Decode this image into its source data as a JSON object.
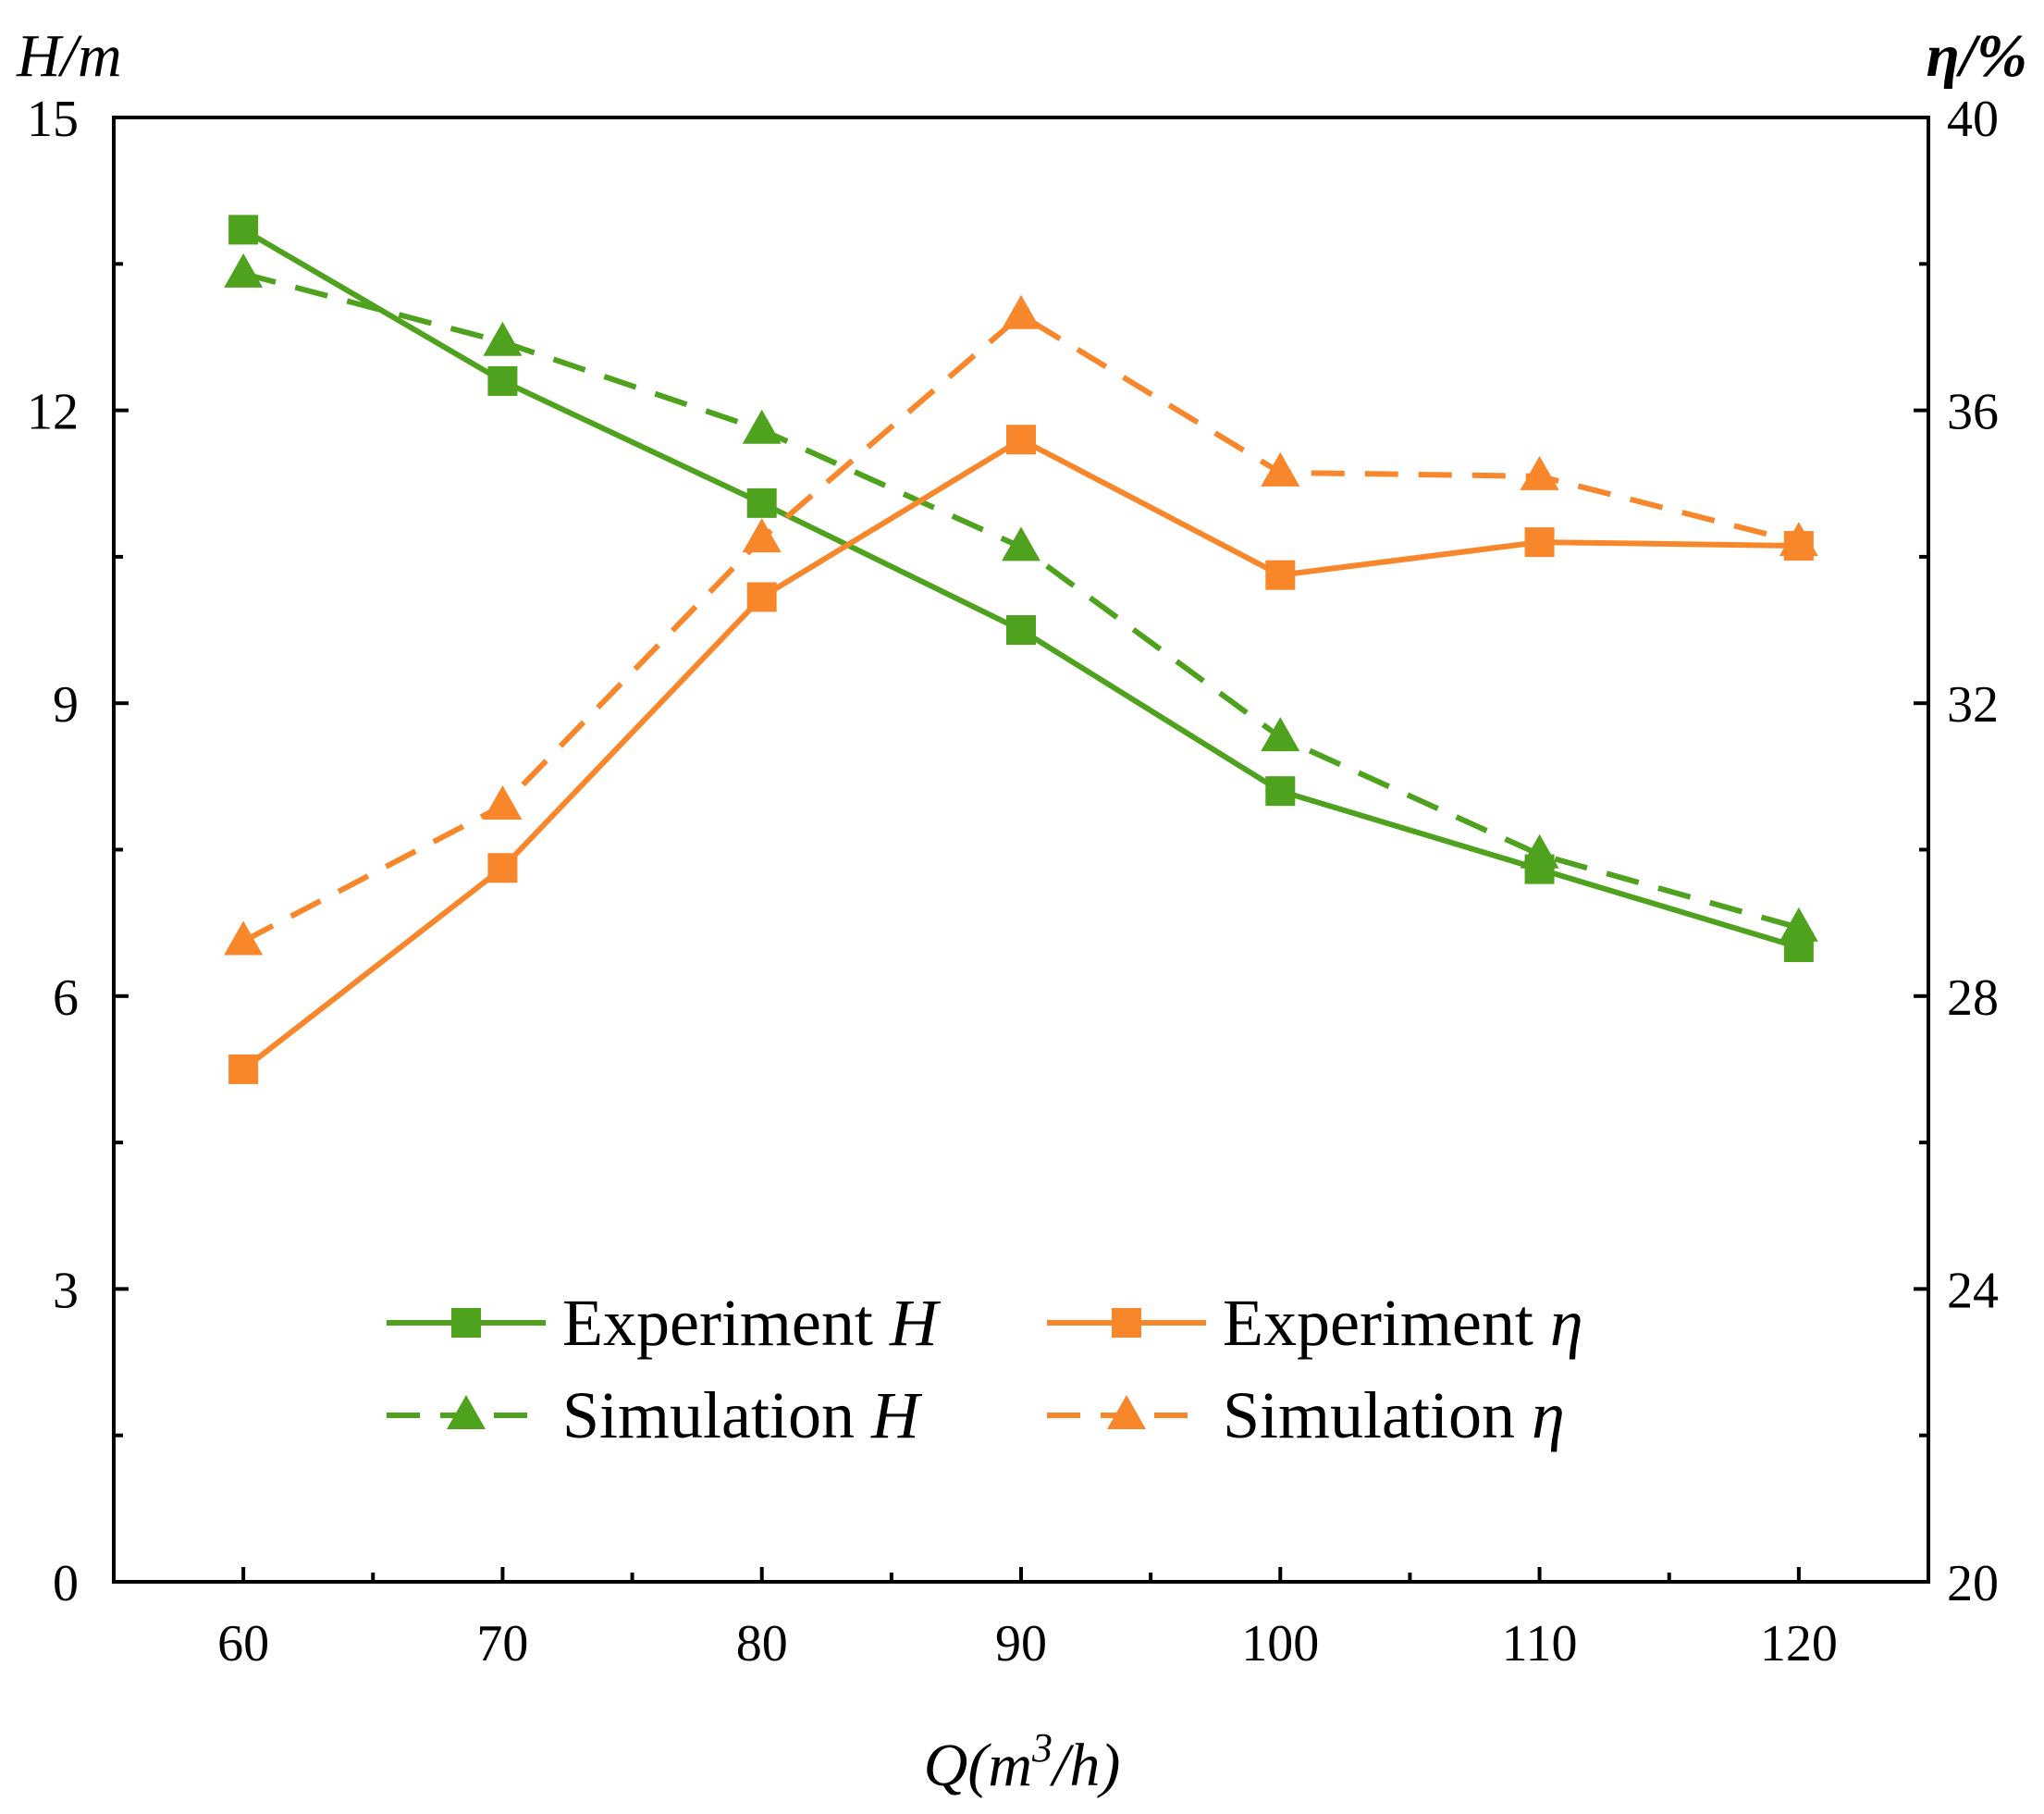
{
  "chart_data": {
    "type": "line",
    "x_title_parts": {
      "q": "Q(m",
      "sup": "3",
      "rest": "/h)"
    },
    "x": [
      60,
      70,
      80,
      90,
      100,
      110,
      120
    ],
    "xlim": [
      55,
      125
    ],
    "x_ticks": [
      60,
      70,
      80,
      90,
      100,
      110,
      120
    ],
    "y_left": {
      "label": "H/m",
      "ylim": [
        0,
        15
      ],
      "ticks": [
        0,
        3,
        6,
        9,
        12,
        15
      ]
    },
    "y_right": {
      "label": "η/%",
      "ylim": [
        20,
        40
      ],
      "ticks": [
        20,
        24,
        28,
        32,
        36,
        40
      ]
    },
    "series": [
      {
        "name_text": "Experiment",
        "name_symbol": "H",
        "axis": "left",
        "marker": "square",
        "dashed": false,
        "color": "#4ea21d",
        "values": [
          13.85,
          12.3,
          11.05,
          9.75,
          8.1,
          7.3,
          6.5
        ]
      },
      {
        "name_text": "Simulation",
        "name_symbol": "H",
        "axis": "left",
        "marker": "triangle",
        "dashed": true,
        "color": "#4ea21d",
        "values": [
          13.4,
          12.7,
          11.8,
          10.6,
          8.65,
          7.45,
          6.7
        ]
      },
      {
        "name_text": "Experiment",
        "name_symbol": "η",
        "axis": "right",
        "marker": "square",
        "dashed": false,
        "color": "#f8872c",
        "values": [
          27.0,
          29.75,
          33.45,
          35.6,
          33.75,
          34.2,
          34.15
        ]
      },
      {
        "name_text": "Simulation",
        "name_symbol": "η",
        "axis": "right",
        "marker": "triangle",
        "dashed": true,
        "color": "#f8872c",
        "values": [
          28.75,
          30.6,
          34.25,
          37.3,
          35.15,
          35.1,
          34.2
        ]
      }
    ],
    "grid": false,
    "legend_position": "bottom-center"
  }
}
